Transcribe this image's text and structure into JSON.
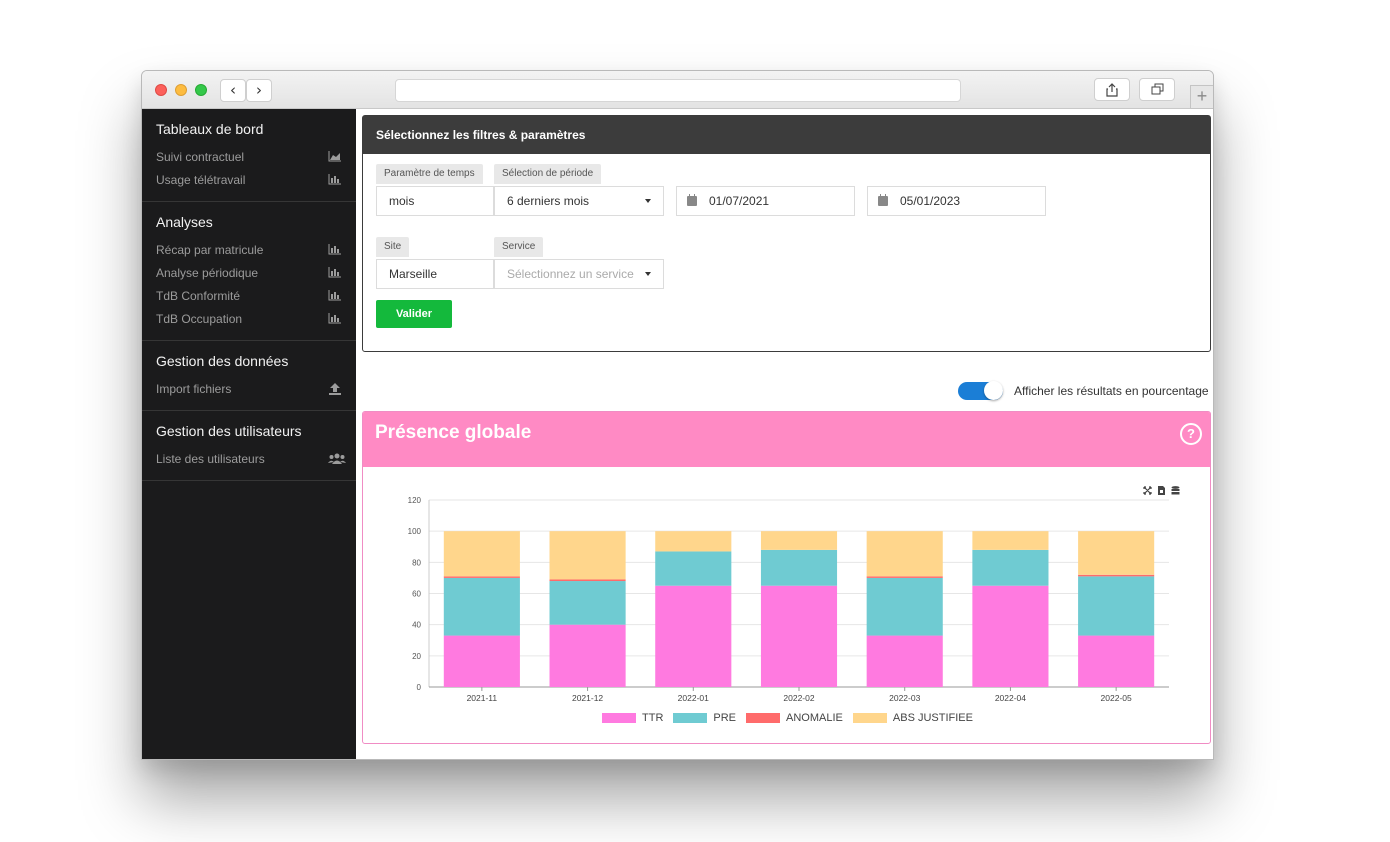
{
  "sidebar": {
    "groups": [
      {
        "title": "Tableaux de bord",
        "items": [
          {
            "label": "Suivi contractuel",
            "icon": "area-chart-icon"
          },
          {
            "label": "Usage télétravail",
            "icon": "bar-chart-icon"
          }
        ]
      },
      {
        "title": "Analyses",
        "items": [
          {
            "label": "Récap par matricule",
            "icon": "bar-chart-icon"
          },
          {
            "label": "Analyse périodique",
            "icon": "bar-chart-icon"
          },
          {
            "label": "TdB Conformité",
            "icon": "bar-chart-icon"
          },
          {
            "label": "TdB Occupation",
            "icon": "bar-chart-icon"
          }
        ]
      },
      {
        "title": "Gestion des données",
        "items": [
          {
            "label": "Import fichiers",
            "icon": "upload-icon"
          }
        ]
      },
      {
        "title": "Gestion des utilisateurs",
        "items": [
          {
            "label": "Liste des utilisateurs",
            "icon": "users-icon"
          }
        ]
      }
    ]
  },
  "filters": {
    "heading": "Sélectionnez les filtres & paramètres",
    "time_param_label": "Paramètre de temps",
    "time_param_value": "mois",
    "period_label": "Sélection de période",
    "period_value": "6 derniers mois",
    "date_start": "01/07/2021",
    "date_end": "05/01/2023",
    "site_label": "Site",
    "site_value": "Marseille",
    "service_label": "Service",
    "service_placeholder": "Sélectionnez un service",
    "submit_label": "Valider"
  },
  "toggle": {
    "label": "Afficher les résultats en pourcentage",
    "on": true
  },
  "panel": {
    "title": "Présence globale",
    "help_glyph": "?"
  },
  "chart_data": {
    "type": "bar",
    "stacked": true,
    "categories": [
      "2021-11",
      "2021-12",
      "2022-01",
      "2022-02",
      "2022-03",
      "2022-04",
      "2022-05"
    ],
    "ylim": [
      0,
      120
    ],
    "yticks": [
      0,
      20,
      40,
      60,
      80,
      100,
      120
    ],
    "series": [
      {
        "name": "TTR",
        "color": "#ff7ae0",
        "values": [
          33,
          40,
          65,
          65,
          33,
          65,
          33
        ]
      },
      {
        "name": "PRE",
        "color": "#6fcbd2",
        "values": [
          37,
          28,
          22,
          23,
          37,
          23,
          38
        ]
      },
      {
        "name": "ANOMALIE",
        "color": "#ff6b6b",
        "values": [
          1,
          1,
          0,
          0,
          1,
          0,
          1
        ]
      },
      {
        "name": "ABS JUSTIFIEE",
        "color": "#ffd68c",
        "values": [
          29,
          31,
          13,
          12,
          29,
          12,
          28
        ]
      }
    ],
    "legend_position": "bottom",
    "grid": true
  }
}
